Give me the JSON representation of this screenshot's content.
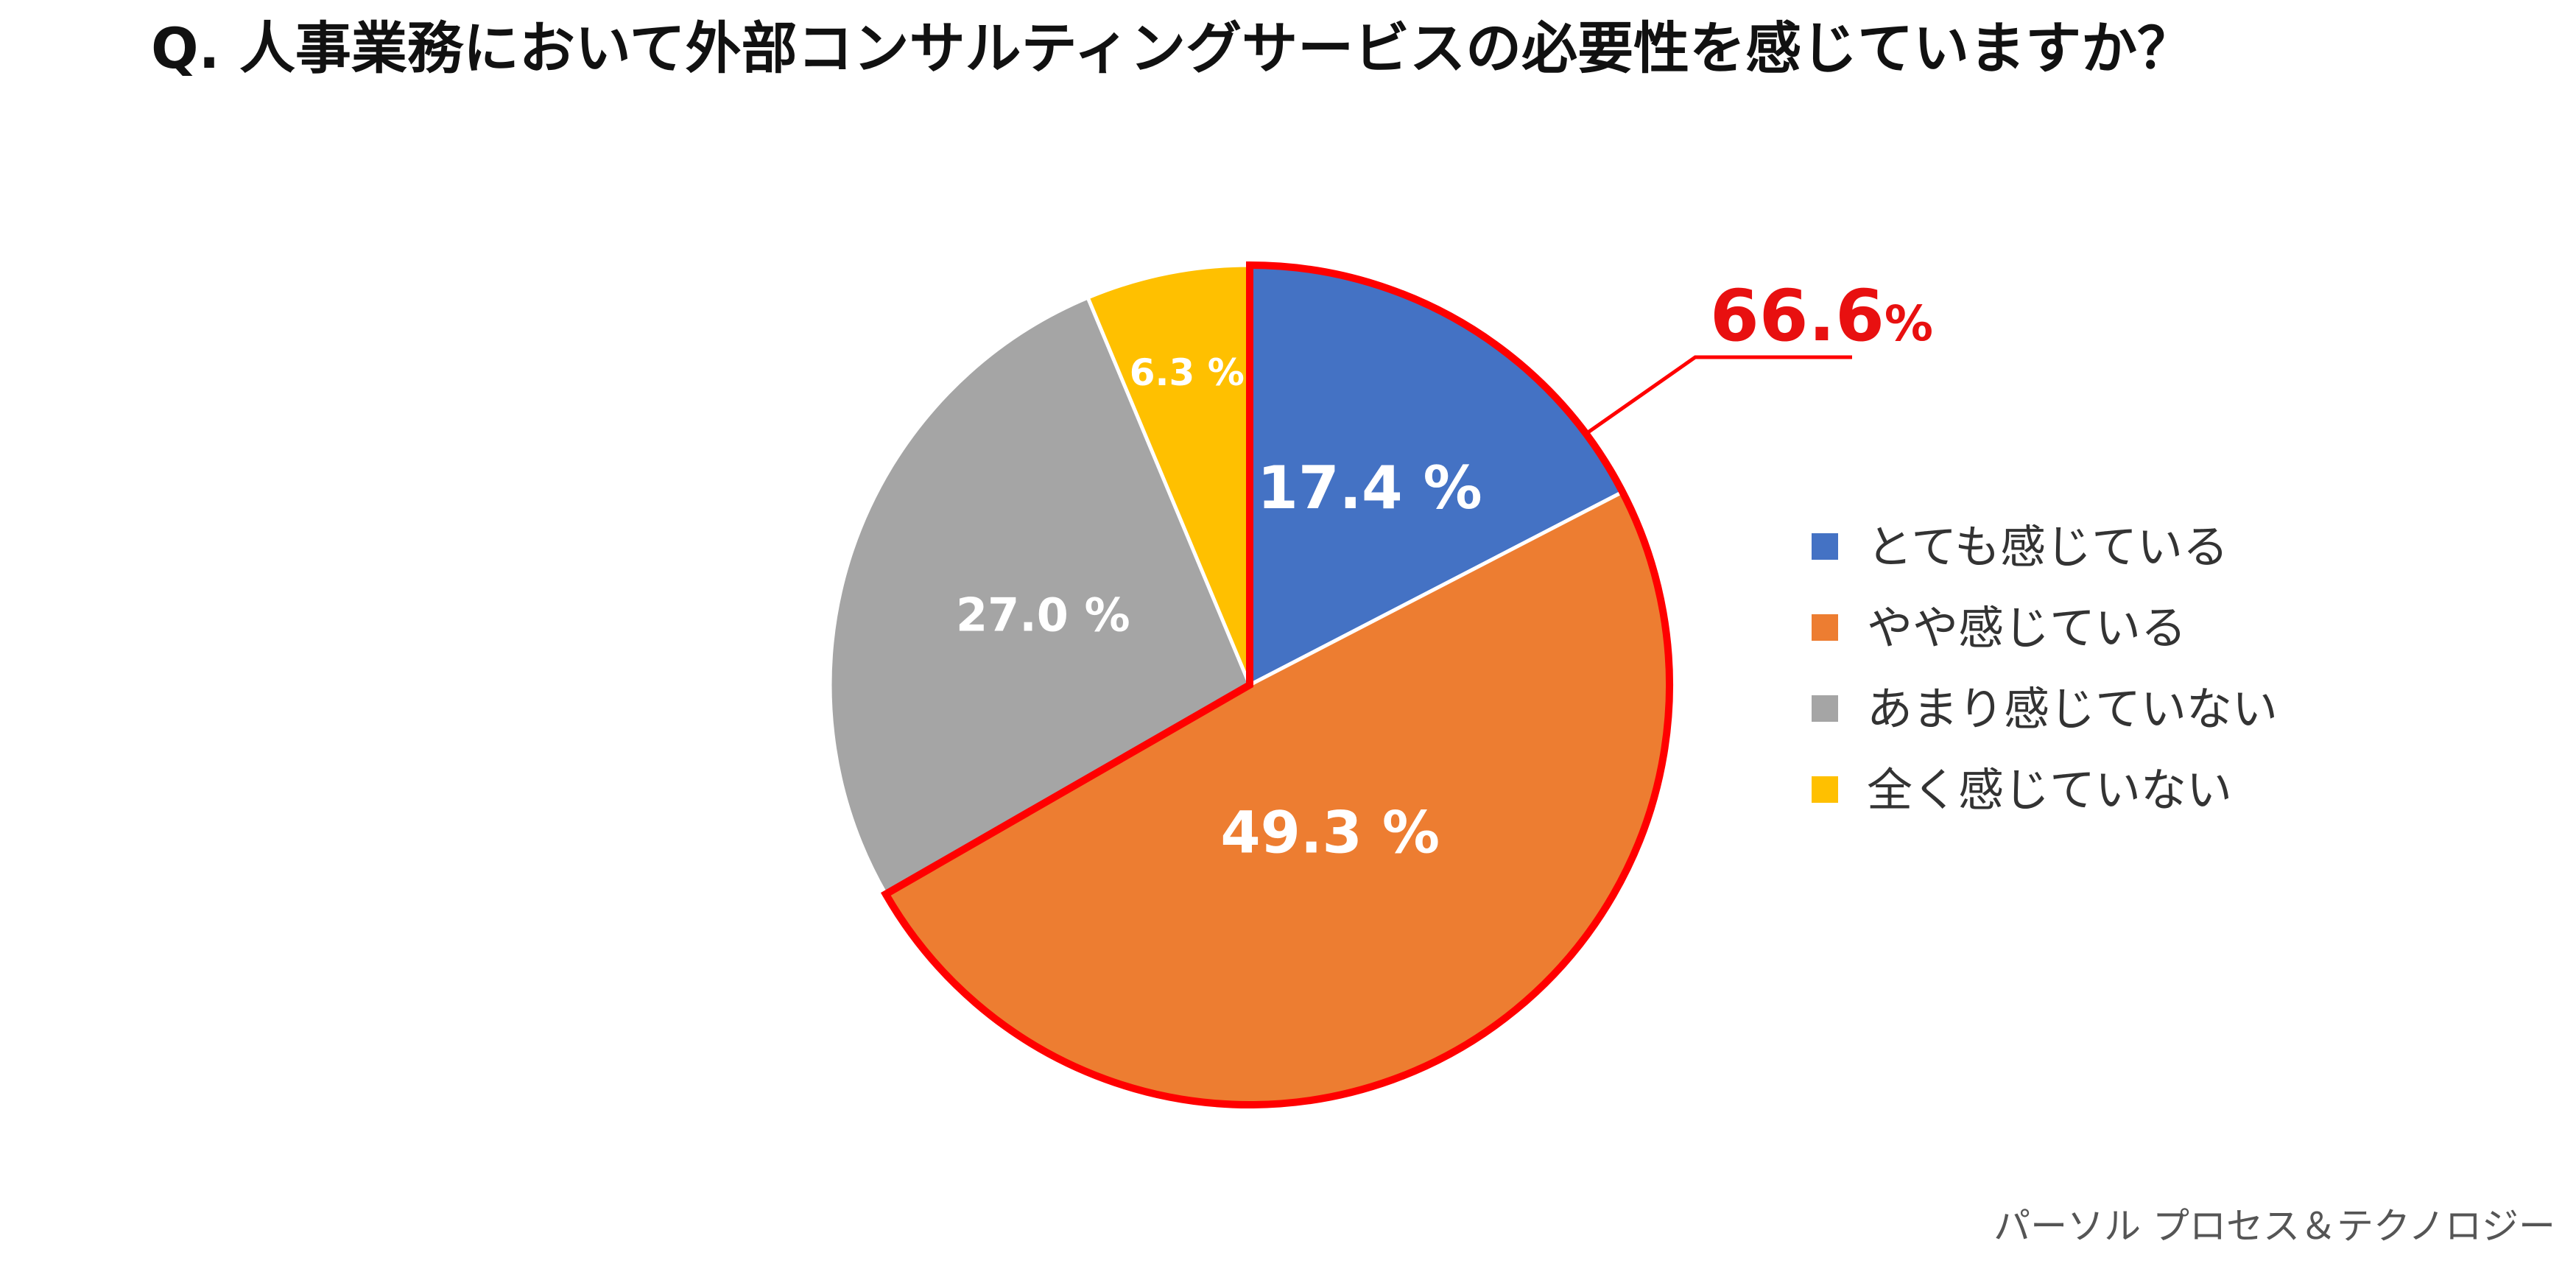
{
  "chart_data": {
    "type": "pie",
    "title": "Q. 人事業務において外部コンサルティングサービスの必要性を感じていますか？",
    "slices": [
      {
        "label": "とても感じている",
        "value": 17.4,
        "display": "17.4 %",
        "color": "#4472c4"
      },
      {
        "label": "やや感じている",
        "value": 49.3,
        "display": "49.3 %",
        "color": "#ed7d31"
      },
      {
        "label": "あまり感じていない",
        "value": 27.0,
        "display": "27.0 %",
        "color": "#a5a5a5"
      },
      {
        "label": "全く感じていない",
        "value": 6.3,
        "display": "6.3 %",
        "color": "#ffc000"
      }
    ],
    "legend_position": "right",
    "highlight": {
      "slices": [
        0,
        1
      ],
      "value": "66.6%",
      "color": "#ff0000"
    },
    "source": "パーソル プロセス＆テクノロジー"
  }
}
